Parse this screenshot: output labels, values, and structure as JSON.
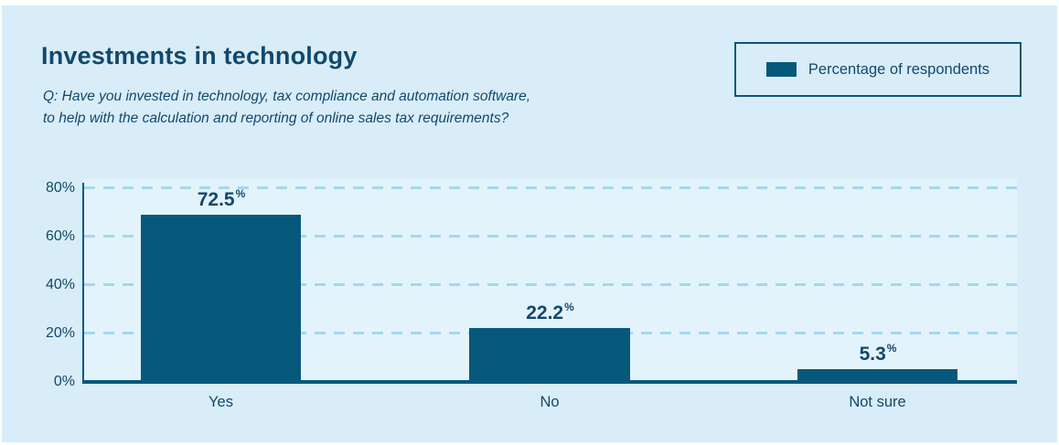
{
  "colors": {
    "page_margin": "#ffffff",
    "card_background": "#d8edf8",
    "plot_background": "#e3f3fb",
    "bar": "#07597c",
    "text": "#12486c",
    "grid": "#a3d8ef",
    "axis": "#07597c",
    "legend_border": "#0d567a"
  },
  "header": {
    "title": "Investments in technology",
    "question_line1": "Q: Have you invested in technology, tax compliance and automation software,",
    "question_line2": "to help with the calculation and reporting of online sales tax requirements?"
  },
  "legend": {
    "label": "Percentage of respondents"
  },
  "chart_data": {
    "type": "bar",
    "title": "Investments in technology",
    "subtitle": "Q: Have you invested in technology, tax compliance and automation software, to help with the calculation and reporting of online sales tax requirements?",
    "categories": [
      "Yes",
      "No",
      "Not sure"
    ],
    "values": [
      72.5,
      22.2,
      5.3
    ],
    "value_labels": [
      "72.5",
      "22.2",
      "5.3"
    ],
    "unit": "%",
    "xlabel": "",
    "ylabel": "Percentage of respondents",
    "ylim": [
      0,
      80
    ],
    "yticks": [
      "0%",
      "20%",
      "40%",
      "60%",
      "80%"
    ],
    "grid": "horizontal-dashed",
    "legend_position": "top-right",
    "legend_entries": [
      "Percentage of respondents"
    ]
  }
}
